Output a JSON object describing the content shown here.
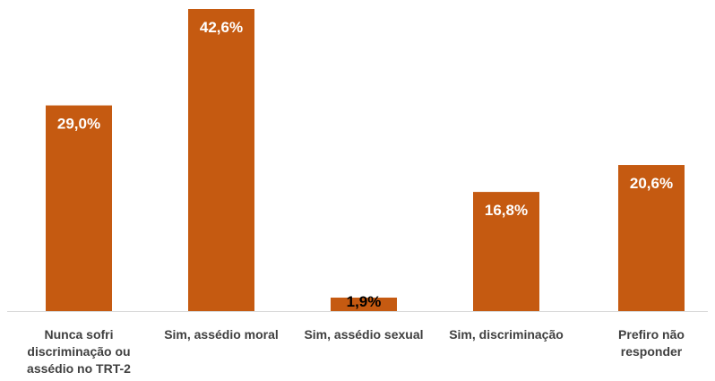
{
  "chart_data": {
    "type": "bar",
    "categories": [
      "Nunca sofri discriminação ou assédio no TRT-2",
      "Sim, assédio moral",
      "Sim, assédio sexual",
      "Sim, discriminação",
      "Prefiro não responder"
    ],
    "category_lines": [
      [
        "Nunca sofri",
        "discriminação ou",
        "assédio no TRT-2"
      ],
      [
        "Sim, assédio moral"
      ],
      [
        "Sim, assédio sexual"
      ],
      [
        "Sim, discriminação"
      ],
      [
        "Prefiro não",
        "responder"
      ]
    ],
    "values": [
      29.0,
      42.6,
      1.9,
      16.8,
      20.6
    ],
    "data_labels": [
      "29,0%",
      "42,6%",
      "1,9%",
      "16,8%",
      "20,6%"
    ],
    "title": "",
    "xlabel": "",
    "ylabel": "",
    "ylim": [
      0,
      42.6
    ],
    "grid": false,
    "legend": "none",
    "colors": {
      "bar": "#C55A11",
      "axis": "#D9D9D9",
      "label_inside": "#FFFFFF",
      "label_outside": "#000000",
      "category_text": "#404040"
    }
  }
}
